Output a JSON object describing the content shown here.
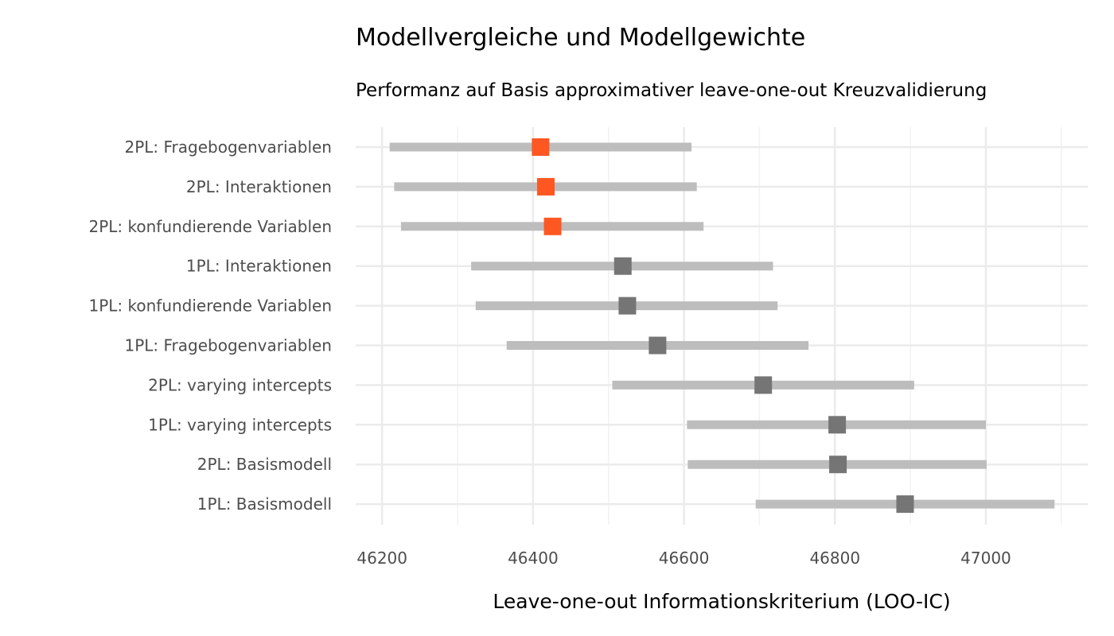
{
  "chart_data": {
    "type": "pointrange",
    "title": "Modellvergleiche und Modellgewichte",
    "subtitle": "Performanz auf Basis approximativer leave-one-out Kreuzvalidierung",
    "xlabel": "Leave-one-out Informationskriterium (LOO-IC)",
    "ylabel": "",
    "xlim": [
      46165,
      47135
    ],
    "x_ticks": [
      46200,
      46400,
      46600,
      46800,
      47000
    ],
    "x_tick_labels": [
      "46200",
      "46400",
      "46600",
      "46800",
      "47000"
    ],
    "grid": true,
    "legend": "none",
    "colors": {
      "highlight": "#ff5722",
      "default_point": "#757575",
      "interval": "#bdbdbd",
      "grid": "#ebebeb"
    },
    "models": [
      {
        "name": "2PL: Fragebogenvariablen",
        "estimate": 46410,
        "low": 46210,
        "high": 46610,
        "highlight": true
      },
      {
        "name": "2PL: Interaktionen",
        "estimate": 46417,
        "low": 46216,
        "high": 46617,
        "highlight": true
      },
      {
        "name": "2PL: konfundierende Variablen",
        "estimate": 46426,
        "low": 46225,
        "high": 46626,
        "highlight": true
      },
      {
        "name": "1PL: Interaktionen",
        "estimate": 46519,
        "low": 46318,
        "high": 46718,
        "highlight": false
      },
      {
        "name": "1PL: konfundierende Variablen",
        "estimate": 46525,
        "low": 46324,
        "high": 46724,
        "highlight": false
      },
      {
        "name": "1PL: Fragebogenvariablen",
        "estimate": 46565,
        "low": 46365,
        "high": 46765,
        "highlight": false
      },
      {
        "name": "2PL: varying intercepts",
        "estimate": 46705,
        "low": 46505,
        "high": 46905,
        "highlight": false
      },
      {
        "name": "1PL: varying intercepts",
        "estimate": 46803,
        "low": 46604,
        "high": 47000,
        "highlight": false
      },
      {
        "name": "2PL: Basismodell",
        "estimate": 46804,
        "low": 46605,
        "high": 47001,
        "highlight": false
      },
      {
        "name": "1PL: Basismodell",
        "estimate": 46893,
        "low": 46695,
        "high": 47091,
        "highlight": false
      }
    ]
  }
}
